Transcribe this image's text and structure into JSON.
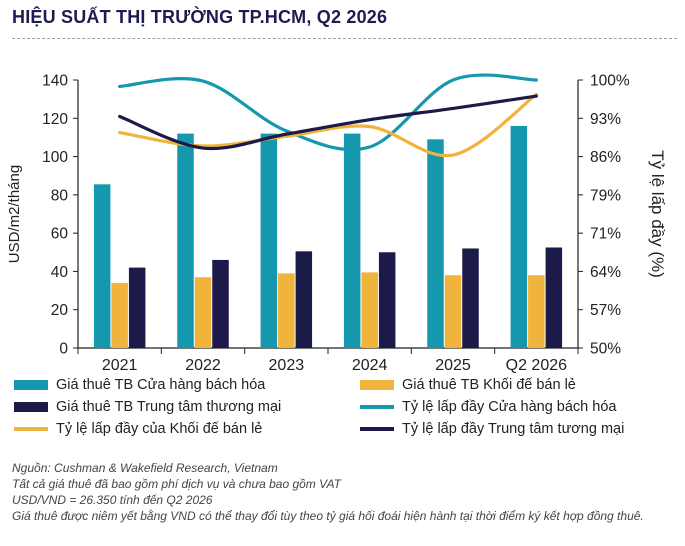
{
  "title": "HIỆU SUẤT THỊ TRƯỜNG TP.HCM, Q2 2026",
  "colors": {
    "retail_rent": "#1597ae",
    "podium_rent": "#f0b43c",
    "mall_rent": "#1c1a48",
    "retail_occ": "#1597ae",
    "podium_occ": "#f0b43c",
    "mall_occ": "#1c1a48",
    "title": "#1c1c50",
    "axis": "#222222"
  },
  "legend": [
    {
      "label": "Giá thuê TB Cửa hàng bách hóa",
      "kind": "bar",
      "color": "#1597ae"
    },
    {
      "label": "Giá thuê TB Khối đế bán lẻ",
      "kind": "bar",
      "color": "#f0b43c"
    },
    {
      "label": "Giá thuê TB Trung tâm thương mại",
      "kind": "bar",
      "color": "#1c1a48"
    },
    {
      "label": "Tỷ lệ lấp đầy Cửa hàng bách hóa",
      "kind": "line",
      "color": "#1597ae"
    },
    {
      "label": "Tỷ lệ lấp đầy của Khối đế bán lẻ",
      "kind": "line",
      "color": "#f0b43c"
    },
    {
      "label": "Tỷ lệ lấp đầy Trung tâm tương mại",
      "kind": "line",
      "color": "#1c1a48"
    }
  ],
  "footnotes": {
    "source": "Nguồn: Cushman & Wakefield Research, Vietnam",
    "note1": "Tất cả giá thuê đã bao gồm phí dịch vụ và chưa bao gồm VAT",
    "note2": "USD/VND = 26.350 tính đến Q2 2026",
    "note3": "Giá thuê được niêm yết bằng VND có thể thay đổi tùy theo tỷ giá hối đoái hiện hành tại thời điểm ký kết hợp đồng thuê."
  },
  "chart_data": {
    "type": "bar",
    "categories": [
      "2021",
      "2022",
      "2023",
      "2024",
      "2025",
      "Q2 2026"
    ],
    "ylabel": "USD/m2/tháng",
    "y2label": "Tỷ lệ lấp đầy (%)",
    "ylim": [
      0,
      140
    ],
    "yticks": [
      "0",
      "20",
      "40",
      "60",
      "80",
      "100",
      "120",
      "140"
    ],
    "y2lim": [
      50,
      100
    ],
    "y2ticks": [
      "50%",
      "57%",
      "64%",
      "71%",
      "79%",
      "86%",
      "93%",
      "100%"
    ],
    "grid": false,
    "legend_position": "bottom",
    "series": [
      {
        "name": "Giá thuê TB Cửa hàng bách hóa",
        "type": "bar",
        "axis": "left",
        "values": [
          85.5,
          112,
          112,
          112,
          109,
          116
        ]
      },
      {
        "name": "Giá thuê TB Khối đế bán lẻ",
        "type": "bar",
        "axis": "left",
        "values": [
          34,
          37,
          39,
          39.5,
          38,
          38
        ]
      },
      {
        "name": "Giá thuê TB Trung tâm thương mại",
        "type": "bar",
        "axis": "left",
        "values": [
          42,
          46,
          50.5,
          50,
          52,
          52.5
        ]
      },
      {
        "name": "Tỷ lệ lấp đầy Cửa hàng bách hóa",
        "type": "line",
        "axis": "right",
        "values": [
          98.8,
          99.8,
          90.5,
          87.5,
          100,
          100
        ]
      },
      {
        "name": "Tỷ lệ lấp đầy của Khối đế bán lẻ",
        "type": "line",
        "axis": "right",
        "values": [
          90.2,
          87.7,
          89.5,
          91.3,
          86.0,
          97.3
        ]
      },
      {
        "name": "Tỷ lệ lấp đầy Trung tâm tương mại",
        "type": "line",
        "axis": "right",
        "values": [
          93.2,
          87.3,
          89.9,
          92.6,
          94.7,
          97.0
        ]
      }
    ]
  }
}
